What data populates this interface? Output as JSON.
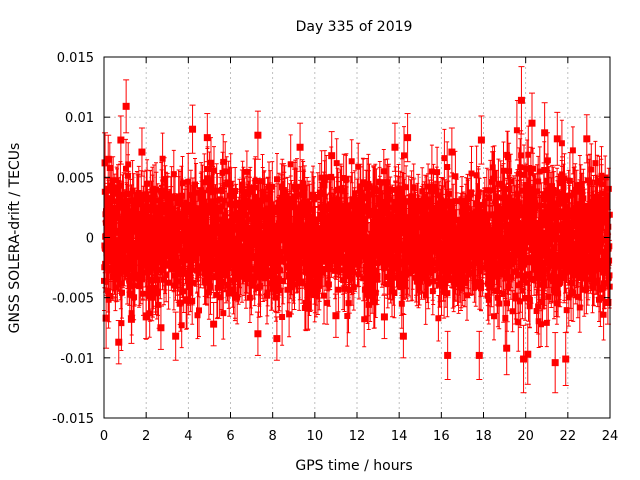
{
  "chart_data": {
    "type": "scatter",
    "title": "Day 335 of 2019",
    "xlabel": "GPS time / hours",
    "ylabel": "GNSS SOLERA-drift / TECUs",
    "xlim": [
      0,
      24
    ],
    "ylim": [
      -0.015,
      0.015
    ],
    "x_ticks": [
      0,
      2,
      4,
      6,
      8,
      10,
      12,
      14,
      16,
      18,
      20,
      22,
      24
    ],
    "x_tick_labels": [
      "0",
      "2",
      "4",
      "6",
      "8",
      "10",
      "12",
      "14",
      "16",
      "18",
      "20",
      "22",
      "24"
    ],
    "y_ticks": [
      -0.015,
      -0.01,
      -0.005,
      0,
      0.005,
      0.01,
      0.015
    ],
    "y_tick_labels": [
      "-0.015",
      "-0.01",
      "-0.005",
      "0",
      "0.005",
      "0.01",
      "0.015"
    ],
    "grid": true,
    "color": "#ff0000",
    "series": [
      {
        "marker": "square",
        "error_bars": true,
        "points": [
          {
            "x": 0.05,
            "y": 0.0062,
            "err": 0.0025
          },
          {
            "x": 0.1,
            "y": -0.0067,
            "err": 0.0025
          },
          {
            "x": 0.2,
            "y": 0.0065,
            "err": 0.002
          },
          {
            "x": 0.7,
            "y": -0.0087,
            "err": 0.0018
          },
          {
            "x": 0.8,
            "y": 0.0081,
            "err": 0.002
          },
          {
            "x": 1.05,
            "y": 0.0109,
            "err": 0.0022
          },
          {
            "x": 1.3,
            "y": -0.0068,
            "err": 0.002
          },
          {
            "x": 1.8,
            "y": 0.0071,
            "err": 0.002
          },
          {
            "x": 2.0,
            "y": -0.0066,
            "err": 0.0018
          },
          {
            "x": 2.7,
            "y": -0.0075,
            "err": 0.0018
          },
          {
            "x": 3.4,
            "y": -0.0082,
            "err": 0.002
          },
          {
            "x": 4.2,
            "y": 0.009,
            "err": 0.002
          },
          {
            "x": 4.9,
            "y": 0.0083,
            "err": 0.002
          },
          {
            "x": 5.2,
            "y": -0.0072,
            "err": 0.0018
          },
          {
            "x": 7.3,
            "y": 0.0085,
            "err": 0.002
          },
          {
            "x": 7.3,
            "y": -0.008,
            "err": 0.0018
          },
          {
            "x": 8.2,
            "y": -0.0084,
            "err": 0.0018
          },
          {
            "x": 9.3,
            "y": 0.0075,
            "err": 0.002
          },
          {
            "x": 10.8,
            "y": 0.0068,
            "err": 0.002
          },
          {
            "x": 11.0,
            "y": -0.0065,
            "err": 0.0018
          },
          {
            "x": 13.3,
            "y": -0.0066,
            "err": 0.0018
          },
          {
            "x": 13.8,
            "y": 0.0075,
            "err": 0.002
          },
          {
            "x": 14.2,
            "y": -0.0082,
            "err": 0.0018
          },
          {
            "x": 14.4,
            "y": 0.0083,
            "err": 0.002
          },
          {
            "x": 16.3,
            "y": -0.0098,
            "err": 0.002
          },
          {
            "x": 16.5,
            "y": 0.0071,
            "err": 0.002
          },
          {
            "x": 17.8,
            "y": -0.0098,
            "err": 0.002
          },
          {
            "x": 17.9,
            "y": 0.0081,
            "err": 0.002
          },
          {
            "x": 19.1,
            "y": -0.0092,
            "err": 0.0022
          },
          {
            "x": 19.8,
            "y": 0.0114,
            "err": 0.0028
          },
          {
            "x": 19.9,
            "y": -0.0101,
            "err": 0.0028
          },
          {
            "x": 20.1,
            "y": -0.0097,
            "err": 0.0025
          },
          {
            "x": 20.3,
            "y": 0.0095,
            "err": 0.0025
          },
          {
            "x": 20.9,
            "y": 0.0087,
            "err": 0.0025
          },
          {
            "x": 21.4,
            "y": -0.0104,
            "err": 0.0025
          },
          {
            "x": 21.5,
            "y": 0.0082,
            "err": 0.0022
          },
          {
            "x": 21.9,
            "y": -0.0101,
            "err": 0.0022
          },
          {
            "x": 22.9,
            "y": 0.0082,
            "err": 0.002
          },
          {
            "x": 23.9,
            "y": -0.0054,
            "err": 0.0018
          }
        ]
      }
    ]
  }
}
